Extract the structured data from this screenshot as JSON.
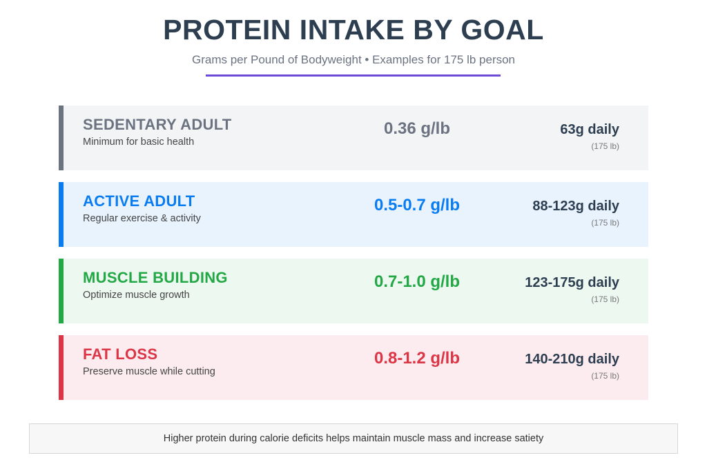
{
  "header": {
    "title": "PROTEIN INTAKE BY GOAL",
    "subtitle": "Grams per Pound of Bodyweight • Examples for 175 lb person",
    "rule_color": "#6a4ad6"
  },
  "goals": [
    {
      "name": "SEDENTARY ADULT",
      "description": "Minimum for basic health",
      "rate": "0.36 g/lb",
      "daily": "63g daily",
      "weight_note": "(175 lb)",
      "accent_color": "#6b7280",
      "background_color": "#f3f4f6"
    },
    {
      "name": "ACTIVE ADULT",
      "description": "Regular exercise & activity",
      "rate": "0.5-0.7 g/lb",
      "daily": "88-123g daily",
      "weight_note": "(175 lb)",
      "accent_color": "#0a7cf2",
      "background_color": "#e8f3fe"
    },
    {
      "name": "MUSCLE BUILDING",
      "description": "Optimize muscle growth",
      "rate": "0.7-1.0 g/lb",
      "daily": "123-175g daily",
      "weight_note": "(175 lb)",
      "accent_color": "#22a845",
      "background_color": "#edf8f0"
    },
    {
      "name": "FAT LOSS",
      "description": "Preserve muscle while cutting",
      "rate": "0.8-1.2 g/lb",
      "daily": "140-210g daily",
      "weight_note": "(175 lb)",
      "accent_color": "#dc3545",
      "background_color": "#fcecef"
    }
  ],
  "footer": {
    "note": "Higher protein during calorie deficits helps maintain muscle mass and increase satiety"
  }
}
